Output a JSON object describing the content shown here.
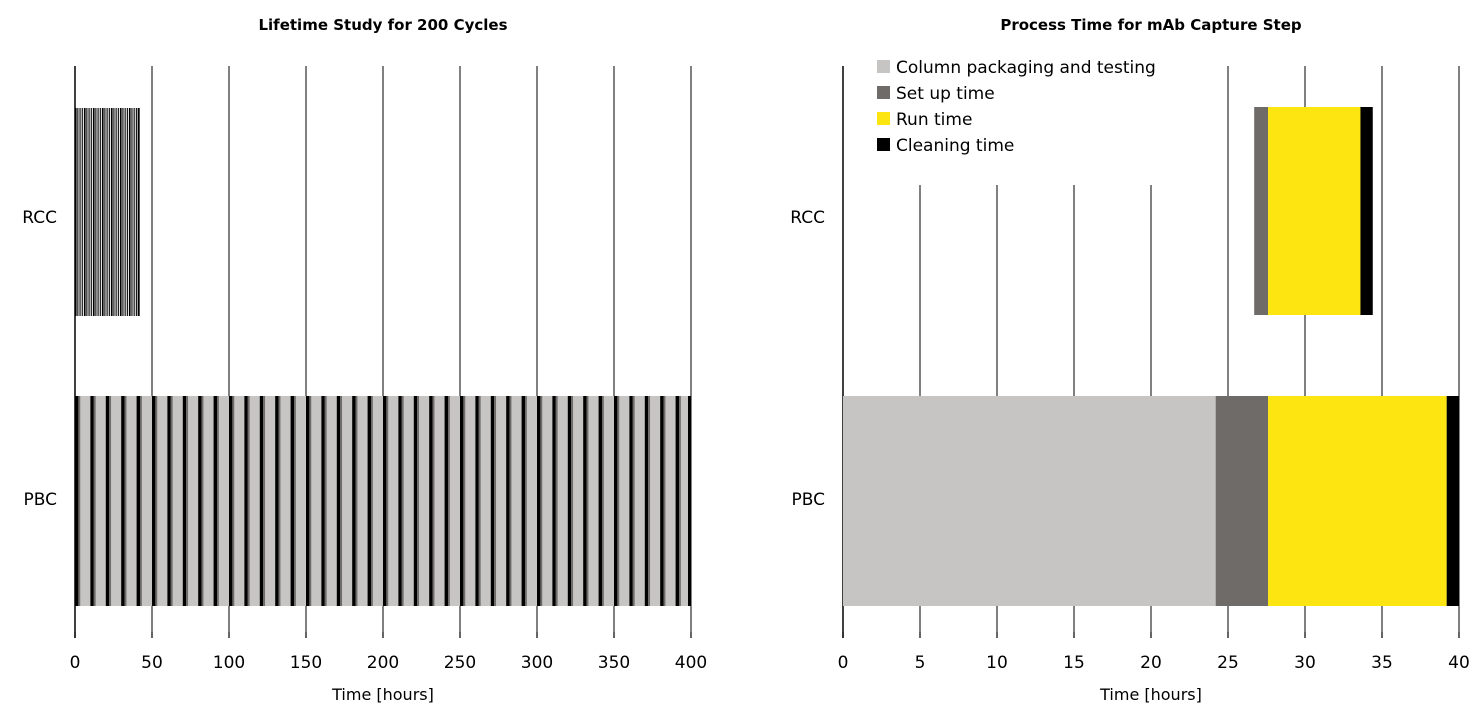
{
  "chart_data": [
    {
      "type": "bar",
      "orientation": "horizontal-stacked",
      "title": "Lifetime Study for 200 Cycles",
      "xlabel": "Time [hours]",
      "ylabel": "",
      "xlim": [
        0,
        400
      ],
      "xticks": [
        0,
        50,
        100,
        150,
        200,
        250,
        300,
        350,
        400
      ],
      "xtick_labels": [
        "0",
        "50",
        "100",
        "150",
        "200",
        "250",
        "300",
        "350",
        "400"
      ],
      "categories": [
        "RCC",
        "PBC"
      ],
      "cycles": 200,
      "totals_hours": {
        "RCC": 42,
        "PBC": 400
      },
      "cycle_pattern": "repeated alternating dark/light stripes per cycle (set up, run, cleaning)",
      "grid": "vertical lines at major ticks"
    },
    {
      "type": "bar",
      "orientation": "horizontal-stacked",
      "title": "Process Time for mAb Capture Step",
      "xlabel": "Time [hours]",
      "ylabel": "",
      "xlim": [
        0,
        40
      ],
      "xticks": [
        0,
        5,
        10,
        15,
        20,
        25,
        30,
        35,
        40
      ],
      "xtick_labels": [
        "0",
        "5",
        "10",
        "15",
        "20",
        "25",
        "30",
        "35",
        "40"
      ],
      "categories": [
        "RCC",
        "PBC"
      ],
      "series": [
        {
          "name": "Column packaging and testing",
          "color": "#c6c5c3",
          "values": [
            0,
            24.2
          ],
          "offsets": [
            26.7,
            0
          ]
        },
        {
          "name": "Set up time",
          "color": "#6e6b69",
          "values": [
            0.9,
            3.4
          ],
          "offsets": [
            26.7,
            24.2
          ]
        },
        {
          "name": "Run time",
          "color": "#fce511",
          "values": [
            6.0,
            11.6
          ],
          "offsets": [
            27.6,
            27.6
          ]
        },
        {
          "name": "Cleaning time",
          "color": "#000000",
          "values": [
            0.8,
            0.8
          ],
          "offsets": [
            33.6,
            39.2
          ]
        }
      ],
      "legend_position": "top-left",
      "grid": "vertical lines at major ticks"
    }
  ]
}
